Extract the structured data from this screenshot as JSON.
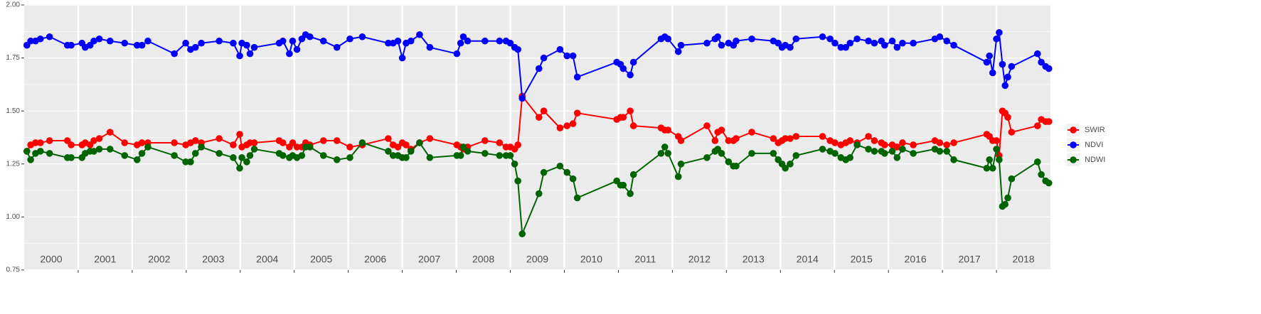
{
  "chart_data": {
    "type": "line",
    "x": [
      2000.05,
      2000.12,
      2000.21,
      2000.3,
      2000.47,
      2000.8,
      2000.87,
      2001.07,
      2001.13,
      2001.22,
      2001.29,
      2001.39,
      2001.59,
      2001.86,
      2002.09,
      2002.18,
      2002.29,
      2002.78,
      2002.99,
      2003.08,
      2003.17,
      2003.28,
      2003.61,
      2003.87,
      2003.99,
      2004.03,
      2004.12,
      2004.18,
      2004.26,
      2004.72,
      2004.79,
      2004.91,
      2004.97,
      2005.05,
      2005.14,
      2005.21,
      2005.29,
      2005.54,
      2005.79,
      2006.03,
      2006.26,
      2006.74,
      2006.83,
      2006.92,
      2007.0,
      2007.07,
      2007.16,
      2007.32,
      2007.51,
      2008.01,
      2008.08,
      2008.13,
      2008.21,
      2008.53,
      2008.8,
      2008.92,
      2009.0,
      2009.08,
      2009.14,
      2009.22,
      2009.53,
      2009.62,
      2009.92,
      2010.05,
      2010.16,
      2010.24,
      2010.97,
      2011.04,
      2011.09,
      2011.22,
      2011.28,
      2011.79,
      2011.86,
      2011.92,
      2012.11,
      2012.16,
      2012.64,
      2012.79,
      2012.84,
      2012.91,
      2013.04,
      2013.13,
      2013.18,
      2013.47,
      2013.87,
      2013.96,
      2014.03,
      2014.09,
      2014.18,
      2014.29,
      2014.78,
      2014.92,
      2015.01,
      2015.12,
      2015.21,
      2015.29,
      2015.42,
      2015.63,
      2015.74,
      2015.87,
      2015.93,
      2016.07,
      2016.16,
      2016.26,
      2016.46,
      2016.86,
      2016.95,
      2017.08,
      2017.21,
      2017.82,
      2017.87,
      2017.93,
      2018.0,
      2018.05,
      2018.11,
      2018.16,
      2018.21,
      2018.28,
      2018.76,
      2018.83,
      2018.91,
      2018.97
    ],
    "series": [
      {
        "name": "SWIR",
        "color": "#ff0000",
        "values": [
          1.31,
          1.34,
          1.35,
          1.35,
          1.36,
          1.36,
          1.34,
          1.34,
          1.35,
          1.34,
          1.36,
          1.37,
          1.4,
          1.35,
          1.34,
          1.35,
          1.35,
          1.35,
          1.34,
          1.35,
          1.36,
          1.35,
          1.37,
          1.34,
          1.39,
          1.33,
          1.34,
          1.35,
          1.35,
          1.36,
          1.35,
          1.33,
          1.35,
          1.33,
          1.33,
          1.35,
          1.34,
          1.36,
          1.36,
          1.33,
          1.34,
          1.37,
          1.34,
          1.33,
          1.35,
          1.34,
          1.32,
          1.35,
          1.37,
          1.34,
          1.33,
          1.32,
          1.33,
          1.36,
          1.35,
          1.33,
          1.33,
          1.32,
          1.34,
          1.57,
          1.47,
          1.5,
          1.42,
          1.43,
          1.44,
          1.49,
          1.46,
          1.47,
          1.47,
          1.5,
          1.43,
          1.42,
          1.41,
          1.41,
          1.38,
          1.36,
          1.43,
          1.36,
          1.4,
          1.41,
          1.36,
          1.36,
          1.37,
          1.4,
          1.37,
          1.35,
          1.36,
          1.37,
          1.37,
          1.38,
          1.38,
          1.36,
          1.35,
          1.34,
          1.35,
          1.36,
          1.35,
          1.38,
          1.36,
          1.35,
          1.34,
          1.34,
          1.33,
          1.35,
          1.34,
          1.36,
          1.35,
          1.34,
          1.35,
          1.39,
          1.38,
          1.36,
          1.36,
          1.29,
          1.5,
          1.49,
          1.47,
          1.4,
          1.43,
          1.46,
          1.45,
          1.45
        ]
      },
      {
        "name": "NDVI",
        "color": "#0000ff",
        "values": [
          1.81,
          1.83,
          1.83,
          1.84,
          1.85,
          1.81,
          1.81,
          1.82,
          1.8,
          1.81,
          1.83,
          1.84,
          1.83,
          1.82,
          1.81,
          1.81,
          1.83,
          1.77,
          1.82,
          1.79,
          1.8,
          1.82,
          1.83,
          1.82,
          1.76,
          1.82,
          1.81,
          1.77,
          1.8,
          1.82,
          1.83,
          1.77,
          1.83,
          1.79,
          1.84,
          1.86,
          1.85,
          1.83,
          1.8,
          1.84,
          1.85,
          1.82,
          1.82,
          1.83,
          1.75,
          1.82,
          1.83,
          1.86,
          1.8,
          1.77,
          1.82,
          1.85,
          1.83,
          1.83,
          1.83,
          1.83,
          1.82,
          1.8,
          1.79,
          1.56,
          1.7,
          1.75,
          1.79,
          1.76,
          1.76,
          1.66,
          1.73,
          1.72,
          1.7,
          1.67,
          1.73,
          1.84,
          1.85,
          1.84,
          1.78,
          1.81,
          1.82,
          1.84,
          1.85,
          1.81,
          1.82,
          1.81,
          1.83,
          1.84,
          1.83,
          1.82,
          1.8,
          1.81,
          1.8,
          1.84,
          1.85,
          1.84,
          1.82,
          1.8,
          1.8,
          1.82,
          1.84,
          1.83,
          1.82,
          1.83,
          1.81,
          1.83,
          1.8,
          1.82,
          1.82,
          1.84,
          1.85,
          1.83,
          1.81,
          1.73,
          1.76,
          1.68,
          1.84,
          1.87,
          1.72,
          1.62,
          1.66,
          1.71,
          1.77,
          1.73,
          1.71,
          1.7
        ]
      },
      {
        "name": "NDWI",
        "color": "#006400",
        "values": [
          1.31,
          1.27,
          1.3,
          1.31,
          1.3,
          1.28,
          1.28,
          1.28,
          1.3,
          1.31,
          1.31,
          1.32,
          1.32,
          1.29,
          1.27,
          1.3,
          1.33,
          1.29,
          1.26,
          1.26,
          1.3,
          1.33,
          1.3,
          1.28,
          1.23,
          1.28,
          1.26,
          1.29,
          1.32,
          1.3,
          1.29,
          1.28,
          1.29,
          1.28,
          1.29,
          1.33,
          1.33,
          1.29,
          1.27,
          1.28,
          1.35,
          1.31,
          1.29,
          1.29,
          1.28,
          1.28,
          1.31,
          1.35,
          1.28,
          1.29,
          1.29,
          1.33,
          1.31,
          1.3,
          1.29,
          1.29,
          1.29,
          1.25,
          1.17,
          0.92,
          1.11,
          1.21,
          1.24,
          1.21,
          1.18,
          1.09,
          1.17,
          1.15,
          1.15,
          1.11,
          1.2,
          1.3,
          1.33,
          1.3,
          1.19,
          1.25,
          1.28,
          1.31,
          1.32,
          1.3,
          1.26,
          1.24,
          1.24,
          1.3,
          1.3,
          1.27,
          1.25,
          1.23,
          1.25,
          1.29,
          1.32,
          1.31,
          1.3,
          1.28,
          1.27,
          1.28,
          1.34,
          1.32,
          1.31,
          1.31,
          1.3,
          1.31,
          1.28,
          1.32,
          1.3,
          1.32,
          1.31,
          1.31,
          1.27,
          1.23,
          1.27,
          1.23,
          1.32,
          1.27,
          1.05,
          1.06,
          1.09,
          1.18,
          1.26,
          1.2,
          1.17,
          1.16
        ]
      }
    ],
    "year_labels": [
      "2000",
      "2001",
      "2002",
      "2003",
      "2004",
      "2005",
      "2006",
      "2007",
      "2008",
      "2009",
      "2010",
      "2011",
      "2012",
      "2013",
      "2014",
      "2015",
      "2016",
      "2017",
      "2018"
    ],
    "xlim": [
      2000,
      2019
    ],
    "xticks": [
      2001,
      2002,
      2003,
      2004,
      2005,
      2006,
      2007,
      2008,
      2009,
      2010,
      2011,
      2012,
      2013,
      2014,
      2015,
      2016,
      2017,
      2018
    ],
    "ylim": [
      0.75,
      2
    ],
    "yticks": [
      0.75,
      {
        "value": 1,
        "label": "1.00"
      },
      1.25,
      {
        "value": 1.5,
        "label": "1.50"
      },
      1.75,
      {
        "value": 2,
        "label": "2.00"
      }
    ],
    "grid": true,
    "legend": "right"
  }
}
